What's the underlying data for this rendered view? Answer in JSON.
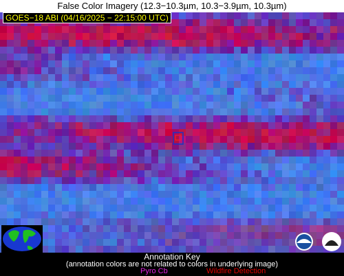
{
  "header": {
    "title": "False Color Imagery (12.3−10.3µm, 10.3−3.9µm, 10.3µm)"
  },
  "image": {
    "label": "GOES−18 ABI (04/16/2025 − 22:15:00 UTC)"
  },
  "key": {
    "title": "Annotation Key",
    "note": "(annotation colors are not related to colors in underlying image)",
    "items": [
      "Pyro Cb",
      "Wildfire Detection"
    ]
  }
}
